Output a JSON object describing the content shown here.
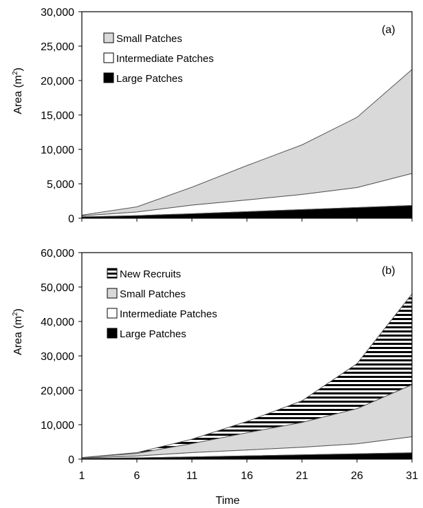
{
  "chart_data": [
    {
      "type": "area",
      "stacked": true,
      "panel_label": "(a)",
      "ylabel": "Area (m",
      "ylabel_sup": "2",
      "ylabel_close": ")",
      "xlabel": "",
      "ylim": [
        0,
        30000
      ],
      "yticks": [
        0,
        5000,
        10000,
        15000,
        20000,
        25000,
        30000
      ],
      "ytick_labels": [
        "0",
        "5,000",
        "10,000",
        "15,000",
        "20,000",
        "25,000",
        "30,000"
      ],
      "xlim": [
        1,
        31
      ],
      "x": [
        1,
        6,
        11,
        16,
        21,
        26,
        31
      ],
      "legend_position": "top-left",
      "series": [
        {
          "name": "Large Patches",
          "fill": "#000000",
          "values": [
            200,
            380,
            650,
            950,
            1250,
            1550,
            1850
          ]
        },
        {
          "name": "Intermediate Patches",
          "fill": "#ffffff",
          "values": [
            150,
            520,
            1250,
            1700,
            2200,
            2900,
            4650
          ]
        },
        {
          "name": "Small Patches",
          "fill": "#d9d9d9",
          "values": [
            100,
            750,
            2600,
            5000,
            7200,
            10200,
            15100
          ]
        }
      ],
      "legend_order": [
        "Small Patches",
        "Intermediate Patches",
        "Large Patches"
      ]
    },
    {
      "type": "area",
      "stacked": true,
      "panel_label": "(b)",
      "ylabel": "Area (m",
      "ylabel_sup": "2",
      "ylabel_close": ")",
      "xlabel": "Time",
      "ylim": [
        0,
        60000
      ],
      "yticks": [
        0,
        10000,
        20000,
        30000,
        40000,
        50000,
        60000
      ],
      "ytick_labels": [
        "0",
        "10,000",
        "20,000",
        "30,000",
        "40,000",
        "50,000",
        "60,000"
      ],
      "xlim": [
        1,
        31
      ],
      "x": [
        1,
        6,
        11,
        16,
        21,
        26,
        31
      ],
      "xtick_labels": [
        "1",
        "6",
        "11",
        "16",
        "21",
        "26",
        "31"
      ],
      "legend_position": "top-left",
      "series": [
        {
          "name": "Large Patches",
          "fill": "#000000",
          "values": [
            200,
            380,
            650,
            950,
            1250,
            1550,
            1850
          ]
        },
        {
          "name": "Intermediate Patches",
          "fill": "#ffffff",
          "values": [
            150,
            520,
            1250,
            1700,
            2200,
            2900,
            4650
          ]
        },
        {
          "name": "Small Patches",
          "fill": "#d9d9d9",
          "values": [
            100,
            750,
            2600,
            5000,
            7200,
            10200,
            15100
          ]
        },
        {
          "name": "New Recruits",
          "fill": "stripes",
          "values": [
            0,
            250,
            1300,
            3300,
            6300,
            13100,
            26400
          ]
        }
      ],
      "legend_order": [
        "New Recruits",
        "Small Patches",
        "Intermediate Patches",
        "Large Patches"
      ]
    }
  ]
}
